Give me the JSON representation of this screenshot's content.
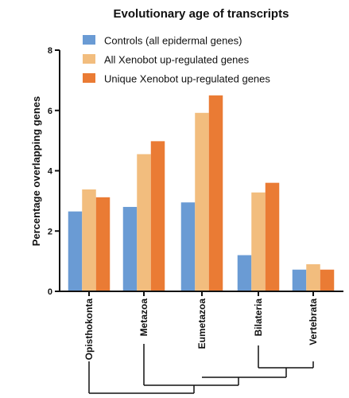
{
  "chart_data": {
    "type": "bar",
    "title": "Evolutionary age of transcripts",
    "xlabel": "",
    "ylabel": "Percentage overlapping genes",
    "ylim": [
      0,
      8
    ],
    "yticks": [
      "0",
      "2",
      "4",
      "6",
      "8"
    ],
    "categories": [
      "Opisthokonta",
      "Metazoa",
      "Eumetazoa",
      "Bilateria",
      "Vertebrata"
    ],
    "series": [
      {
        "name": "Controls (all epidermal genes)",
        "color": "#6a9bd4",
        "values": [
          2.65,
          2.8,
          2.95,
          1.2,
          0.72
        ]
      },
      {
        "name": "All Xenobot up-regulated genes",
        "color": "#f2bd7e",
        "values": [
          3.38,
          4.55,
          5.92,
          3.28,
          0.9
        ]
      },
      {
        "name": "Unique Xenobot up-regulated genes",
        "color": "#ea7b34",
        "values": [
          3.12,
          4.98,
          6.5,
          3.6,
          0.72
        ]
      }
    ],
    "legend_position": "top",
    "grid": false,
    "has_phylogeny_tree": true
  }
}
